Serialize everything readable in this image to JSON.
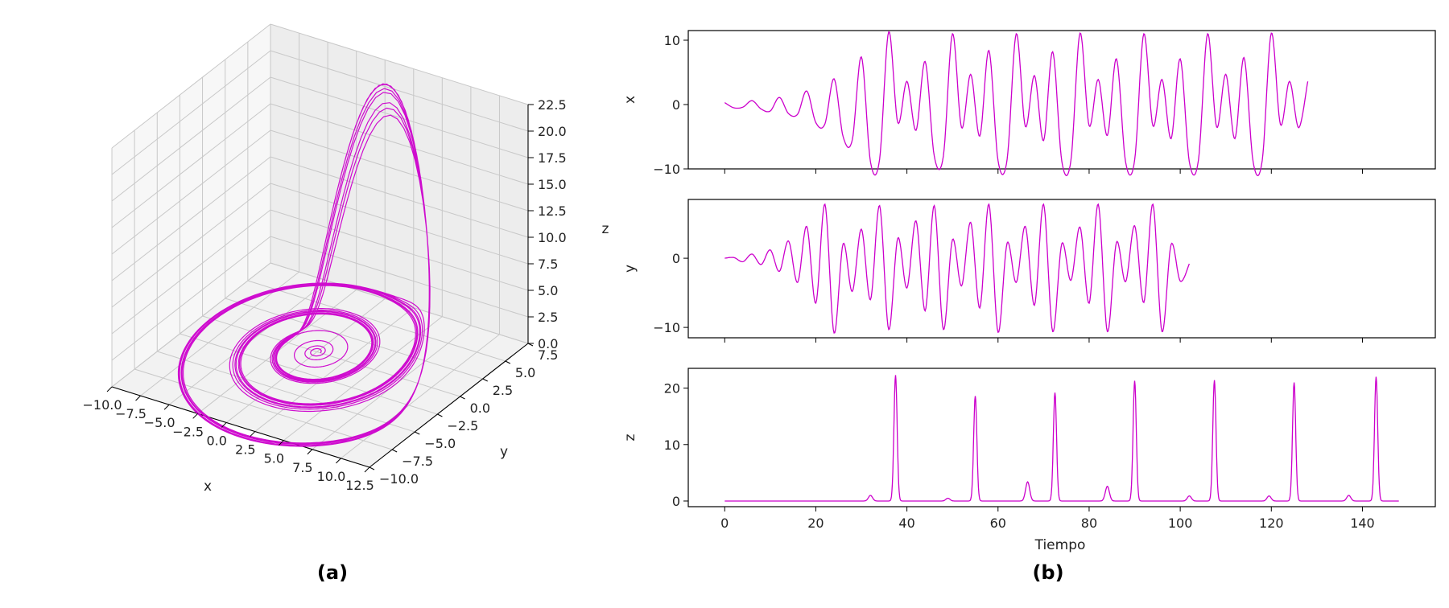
{
  "panel_labels": {
    "a": "(a)",
    "b": "(b)"
  },
  "chart_data": [
    {
      "type": "line3d",
      "panel": "(a)",
      "color": "#cc00cc",
      "xlabel": "x",
      "ylabel": "y",
      "zlabel": "z",
      "xlim": [
        -10.0,
        12.5
      ],
      "ylim": [
        -10.0,
        7.5
      ],
      "zlim": [
        0.0,
        22.5
      ],
      "x_ticks": [
        "−10.0",
        "−7.5",
        "−5.0",
        "−2.5",
        "0.0",
        "2.5",
        "5.0",
        "7.5",
        "10.0",
        "12.5"
      ],
      "y_ticks": [
        "−10.0",
        "−7.5",
        "−5.0",
        "−2.5",
        "0.0",
        "2.5",
        "5.0",
        "7.5"
      ],
      "z_ticks": [
        "0.0",
        "2.5",
        "5.0",
        "7.5",
        "10.0",
        "12.5",
        "15.0",
        "17.5",
        "20.0",
        "22.5"
      ],
      "grid": true
    },
    {
      "type": "line",
      "panel": "(b)",
      "color": "#cc00cc",
      "xlabel": "Tiempo",
      "xlim": [
        0,
        148
      ],
      "x_ticks": [
        "0",
        "20",
        "40",
        "60",
        "80",
        "100",
        "120",
        "140"
      ],
      "subplots": [
        {
          "ylabel": "x",
          "ylim": [
            -10,
            11.5
          ],
          "y_ticks": [
            "−10",
            "0",
            "10"
          ],
          "points": [
            [
              0,
              0.3
            ],
            [
              2,
              -0.5
            ],
            [
              4,
              -0.4
            ],
            [
              6,
              0.6
            ],
            [
              8,
              -0.7
            ],
            [
              10,
              -1.0
            ],
            [
              12,
              1.1
            ],
            [
              14,
              -1.4
            ],
            [
              16,
              -1.5
            ],
            [
              18,
              2.1
            ],
            [
              20,
              -2.8
            ],
            [
              22,
              -3.0
            ],
            [
              24,
              4.0
            ],
            [
              26,
              -5.0
            ],
            [
              28,
              -5.5
            ],
            [
              30,
              7.4
            ],
            [
              32,
              -8.9
            ],
            [
              34,
              -8.5
            ],
            [
              36,
              11.3
            ],
            [
              38,
              -2.8
            ],
            [
              40,
              3.6
            ],
            [
              42,
              -4.0
            ],
            [
              44,
              6.7
            ],
            [
              46,
              -8.0
            ],
            [
              48,
              -8.0
            ],
            [
              50,
              11.0
            ],
            [
              52,
              -3.6
            ],
            [
              54,
              4.7
            ],
            [
              56,
              -4.9
            ],
            [
              58,
              8.4
            ],
            [
              60,
              -8.7
            ],
            [
              62,
              -8.5
            ],
            [
              64,
              11.0
            ],
            [
              66,
              -3.4
            ],
            [
              68,
              4.5
            ],
            [
              70,
              -5.6
            ],
            [
              72,
              8.2
            ],
            [
              74,
              -8.8
            ],
            [
              76,
              -8.7
            ],
            [
              78,
              11.1
            ],
            [
              80,
              -3.3
            ],
            [
              82,
              3.9
            ],
            [
              84,
              -4.8
            ],
            [
              86,
              7.1
            ],
            [
              88,
              -8.9
            ],
            [
              90,
              -8.6
            ],
            [
              92,
              11.0
            ],
            [
              94,
              -3.3
            ],
            [
              96,
              3.9
            ],
            [
              98,
              -5.3
            ],
            [
              100,
              7.1
            ],
            [
              102,
              -8.9
            ],
            [
              104,
              -8.6
            ],
            [
              106,
              11.0
            ],
            [
              108,
              -3.5
            ],
            [
              110,
              4.7
            ],
            [
              112,
              -5.3
            ],
            [
              114,
              7.3
            ],
            [
              116,
              -8.9
            ],
            [
              118,
              -8.7
            ],
            [
              120,
              11.1
            ],
            [
              122,
              -3.1
            ],
            [
              124,
              3.6
            ],
            [
              126,
              -3.6
            ],
            [
              128,
              3.6
            ]
          ]
        },
        {
          "ylabel": "y",
          "ylim": [
            -11.5,
            8.5
          ],
          "y_ticks": [
            "−10",
            "0"
          ],
          "points": [
            [
              0,
              0
            ],
            [
              2,
              0.1
            ],
            [
              4,
              -0.5
            ],
            [
              6,
              0.6
            ],
            [
              8,
              -0.9
            ],
            [
              10,
              1.2
            ],
            [
              12,
              -1.9
            ],
            [
              14,
              2.5
            ],
            [
              16,
              -3.5
            ],
            [
              18,
              4.6
            ],
            [
              20,
              -6.5
            ],
            [
              22,
              7.8
            ],
            [
              24,
              -10.8
            ],
            [
              26,
              2.1
            ],
            [
              28,
              -4.8
            ],
            [
              30,
              4.2
            ],
            [
              32,
              -6.0
            ],
            [
              34,
              7.6
            ],
            [
              36,
              -10.3
            ],
            [
              38,
              2.9
            ],
            [
              40,
              -4.3
            ],
            [
              42,
              5.4
            ],
            [
              44,
              -7.6
            ],
            [
              46,
              7.6
            ],
            [
              48,
              -10.3
            ],
            [
              50,
              2.7
            ],
            [
              52,
              -4.0
            ],
            [
              54,
              5.2
            ],
            [
              56,
              -7.2
            ],
            [
              58,
              7.8
            ],
            [
              60,
              -10.7
            ],
            [
              62,
              2.2
            ],
            [
              64,
              -3.5
            ],
            [
              66,
              4.6
            ],
            [
              68,
              -6.8
            ],
            [
              70,
              7.8
            ],
            [
              72,
              -10.6
            ],
            [
              74,
              2.1
            ],
            [
              76,
              -3.2
            ],
            [
              78,
              4.5
            ],
            [
              80,
              -6.5
            ],
            [
              82,
              7.8
            ],
            [
              84,
              -10.6
            ],
            [
              86,
              2.3
            ],
            [
              88,
              -3.4
            ],
            [
              90,
              4.7
            ],
            [
              92,
              -6.4
            ],
            [
              94,
              7.8
            ],
            [
              96,
              -10.6
            ],
            [
              98,
              2.0
            ],
            [
              100,
              -3.3
            ],
            [
              102,
              -0.8
            ]
          ]
        },
        {
          "ylabel": "z",
          "ylim": [
            -1,
            23.5
          ],
          "y_ticks": [
            "0",
            "10",
            "20"
          ],
          "peaks": [
            [
              32,
              1.0
            ],
            [
              37.5,
              22.3
            ],
            [
              49,
              0.5
            ],
            [
              55,
              18.6
            ],
            [
              66.5,
              3.4
            ],
            [
              72.5,
              19.2
            ],
            [
              84,
              2.6
            ],
            [
              90,
              21.3
            ],
            [
              102,
              0.9
            ],
            [
              107.5,
              21.4
            ],
            [
              119.5,
              0.9
            ],
            [
              125,
              21.0
            ],
            [
              137,
              1.0
            ],
            [
              143,
              22.0
            ]
          ],
          "end": 148
        }
      ]
    }
  ]
}
